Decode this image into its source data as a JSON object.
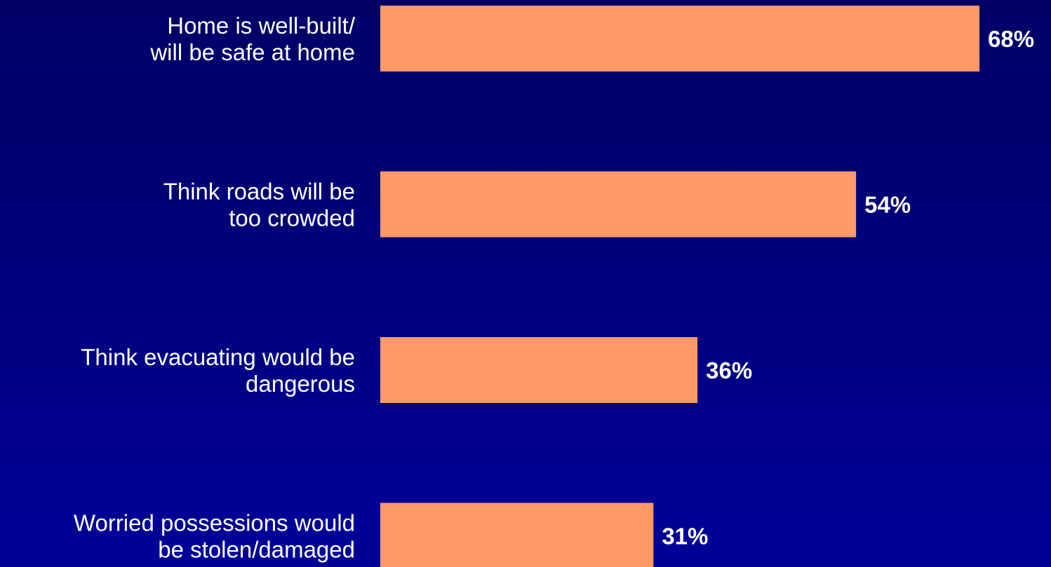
{
  "chart_data": {
    "type": "bar",
    "orientation": "horizontal",
    "categories": [
      [
        "Home is well-built/",
        "will be safe at home"
      ],
      [
        "Think roads will be",
        "too crowded"
      ],
      [
        "Think evacuating would be",
        "dangerous"
      ],
      [
        "Worried possessions would",
        "be stolen/damaged"
      ]
    ],
    "values": [
      68,
      54,
      36,
      31
    ],
    "value_labels": [
      "68%",
      "54%",
      "36%",
      "31%"
    ],
    "unit": "%",
    "grid": false,
    "colors": {
      "bar": "#FF9966",
      "text": "#FFFFFF",
      "background_top": "#000066",
      "background_bottom": "#000099"
    }
  }
}
